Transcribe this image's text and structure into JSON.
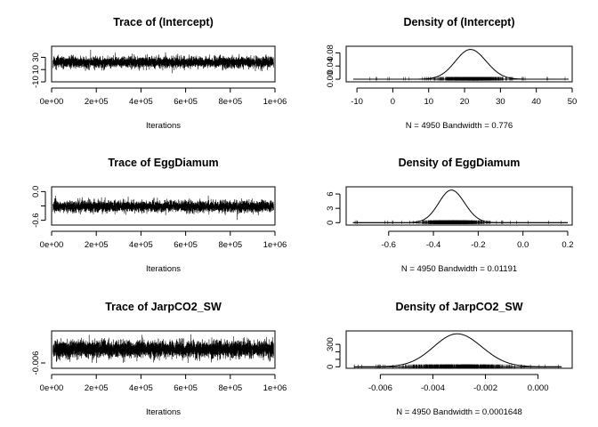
{
  "chart_data": [
    {
      "type": "line",
      "title": "Trace of (Intercept)",
      "xlabel": "Iterations",
      "ylabel": "",
      "xlim": [
        0,
        1000000
      ],
      "ylim": [
        -10,
        48
      ],
      "x_ticks": [
        0,
        200000,
        400000,
        600000,
        800000,
        1000000
      ],
      "x_tick_labels": [
        "0e+00",
        "2e+05",
        "4e+05",
        "6e+05",
        "8e+05",
        "1e+06"
      ],
      "y_ticks": [
        -10,
        10,
        30
      ],
      "y_tick_labels": [
        "-10",
        "10",
        "30"
      ],
      "n_samples": 4950,
      "series": [
        {
          "mean": 22,
          "sd": 4.3
        }
      ]
    },
    {
      "type": "line",
      "title": "Density of (Intercept)",
      "xlabel": "N = 4950   Bandwidth = 0.776",
      "ylabel": "",
      "xlim": [
        -13,
        50
      ],
      "ylim": [
        -0.008,
        0.1
      ],
      "x_ticks": [
        -10,
        0,
        10,
        20,
        30,
        40,
        50
      ],
      "x_tick_labels": [
        "-10",
        "0",
        "10",
        "20",
        "30",
        "40",
        "50"
      ],
      "y_ticks": [
        0,
        0.04,
        0.08
      ],
      "y_tick_labels": [
        "0.00",
        "0.04",
        "0.08"
      ],
      "n_samples": 4950,
      "bandwidth": 0.776,
      "series": [
        {
          "mean": 22,
          "sd": 4.3,
          "peak": 0.09,
          "rug_range": [
            -11,
            49
          ]
        }
      ]
    },
    {
      "type": "line",
      "title": "Trace of EggDiamum",
      "xlabel": "Iterations",
      "ylabel": "",
      "xlim": [
        0,
        1000000
      ],
      "ylim": [
        -0.7,
        0.1
      ],
      "x_ticks": [
        0,
        200000,
        400000,
        600000,
        800000,
        1000000
      ],
      "x_tick_labels": [
        "0e+00",
        "2e+05",
        "4e+05",
        "6e+05",
        "8e+05",
        "1e+06"
      ],
      "y_ticks": [
        -0.6,
        -0.3,
        0.0
      ],
      "y_tick_labels": [
        "-0.6",
        "",
        "0.0"
      ],
      "n_samples": 4950,
      "series": [
        {
          "mean": -0.31,
          "sd": 0.058
        }
      ]
    },
    {
      "type": "line",
      "title": "Density of EggDiamum",
      "xlabel": "N = 4950   Bandwidth = 0.01191",
      "ylabel": "",
      "xlim": [
        -0.79,
        0.22
      ],
      "ylim": [
        -0.5,
        7.5
      ],
      "x_ticks": [
        -0.6,
        -0.4,
        -0.2,
        0.0,
        0.2
      ],
      "x_tick_labels": [
        "-0.6",
        "-0.4",
        "-0.2",
        "0.0",
        "0.2"
      ],
      "y_ticks": [
        0,
        3,
        6
      ],
      "y_tick_labels": [
        "0",
        "3",
        "6"
      ],
      "n_samples": 4950,
      "bandwidth": 0.01191,
      "series": [
        {
          "mean": -0.315,
          "sd": 0.058,
          "peak": 6.8,
          "rug_range": [
            -0.76,
            0.2
          ]
        }
      ]
    },
    {
      "type": "line",
      "title": "Trace of JarpCO2_SW",
      "xlabel": "Iterations",
      "ylabel": "",
      "xlim": [
        0,
        1000000
      ],
      "ylim": [
        -0.0072,
        0.0012
      ],
      "x_ticks": [
        0,
        200000,
        400000,
        600000,
        800000,
        1000000
      ],
      "x_tick_labels": [
        "0e+00",
        "2e+05",
        "4e+05",
        "6e+05",
        "8e+05",
        "1e+06"
      ],
      "y_ticks": [
        -0.006
      ],
      "y_tick_labels": [
        "-0.006"
      ],
      "n_samples": 4950,
      "series": [
        {
          "mean": -0.0029,
          "sd": 0.00092
        }
      ]
    },
    {
      "type": "line",
      "title": "Density of JarpCO2_SW",
      "xlabel": "N = 4950   Bandwidth = 0.0001648",
      "ylabel": "",
      "xlim": [
        -0.0073,
        0.0013
      ],
      "ylim": [
        -20,
        480
      ],
      "x_ticks": [
        -0.006,
        -0.004,
        -0.002,
        0.0
      ],
      "x_tick_labels": [
        "-0.006",
        "-0.004",
        "-0.002",
        "0.000"
      ],
      "y_ticks": [
        0,
        100,
        200,
        300
      ],
      "y_tick_labels": [
        "0",
        "",
        "",
        "300"
      ],
      "n_samples": 4950,
      "bandwidth": 0.0001648,
      "series": [
        {
          "mean": -0.003,
          "sd": 0.00092,
          "peak": 440,
          "rug_range": [
            -0.007,
            0.0009
          ]
        }
      ]
    }
  ]
}
